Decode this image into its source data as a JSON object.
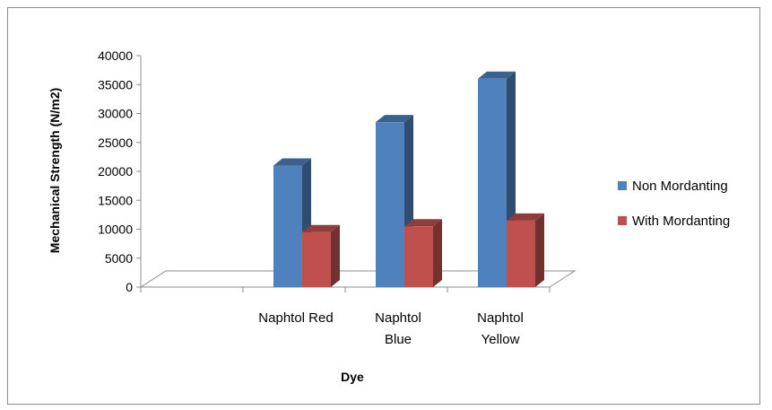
{
  "chart_data": {
    "type": "bar",
    "title": "",
    "xlabel": "Dye",
    "ylabel": "Mechanical Strength (N/m2)",
    "ylim": [
      0,
      40000
    ],
    "yticks": [
      "0",
      "5000",
      "10000",
      "15000",
      "20000",
      "25000",
      "30000",
      "35000",
      "40000"
    ],
    "categories": [
      {
        "lines": [
          "Naphtol Red"
        ]
      },
      {
        "lines": [
          "Naphtol",
          "Blue"
        ]
      },
      {
        "lines": [
          "Naphtol",
          "Yellow"
        ]
      }
    ],
    "series": [
      {
        "name": "Non Mordanting",
        "values": [
          21000,
          28500,
          36000
        ],
        "color": "#4f81bd"
      },
      {
        "name": "With Mordanting",
        "values": [
          9500,
          10500,
          11500
        ],
        "color": "#c0504d"
      }
    ],
    "legend_position": "right",
    "grid": false,
    "style": "3d-column"
  }
}
